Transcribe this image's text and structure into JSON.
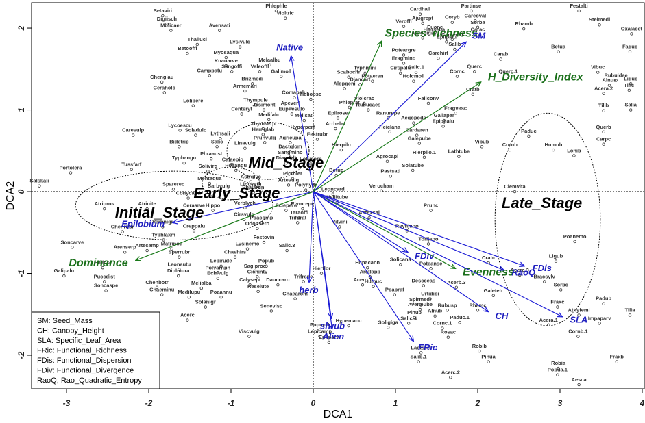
{
  "chart_data": {
    "type": "scatter",
    "xlabel": "DCA1",
    "ylabel": "DCA2",
    "xlim": [
      -3.425,
      4.025
    ],
    "ylim": [
      -2.41,
      2.31
    ],
    "xticks": [
      -3,
      -2,
      -1,
      0,
      1,
      2,
      3,
      4
    ],
    "yticks": [
      -2,
      -1,
      0,
      1,
      2
    ],
    "species": {
      "names": [
        "Setaviri",
        "Digiisch",
        "Molicaer",
        "Avensati",
        "Phlephle",
        "Violtric",
        "Thalluci",
        "Lysivulg",
        "Betooffi",
        "Myosaqua",
        "Knauarve",
        "Sangoffi",
        "Melaalbu",
        "Valeoffi",
        "Galimoll",
        "Camppatu",
        "Chenglau",
        "Brizmedi",
        "Armemari",
        "Ceraholo",
        "Lolipere",
        "Comapalu",
        "Heliobsc",
        "Thympule",
        "Apeverl",
        "Jasimont",
        "Euphesulo",
        "Centeryt",
        "Medifalc",
        "Melisati",
        "Lycoescu",
        "Soladulc",
        "Carevulp",
        "Thymserp",
        "Hernglab",
        "Lythsali",
        "Hyperperf",
        "Festrubr",
        "Salic",
        "Bidetrip",
        "Prunvulg",
        "Agrieupa",
        "Linavulg",
        "Dactglom",
        "Sangmino",
        "Phraaust",
        "Diandelt",
        "Lotucorn",
        "Typhangu",
        "Calaepig",
        "Poaangu",
        "Solivirg",
        "Tussfarf",
        "Portolera",
        "Salskali",
        "Mentaqua",
        "Sparerec",
        "Conycana",
        "Barbvulg",
        "Astrglyc",
        "Linucath",
        "Picrhier",
        "Artevulg",
        "Polyhydr",
        "Phalarun",
        "Verblych",
        "Sciepere",
        "Elymrepe",
        "Hippo",
        "Ceraarve",
        "Atripros",
        "Atrinite",
        "Verbnigr",
        "Chenrubr",
        "Creppalu",
        "Typhlaxm",
        "Cirsvulg",
        "Poacomp",
        "Odonsero",
        "Taraoffi",
        "Trifprat",
        "Festovin",
        "Lysinemo",
        "Salic.3",
        "Matrinod",
        "Soncarve",
        "Arenserp",
        "Artecamp",
        "Sperrubr",
        "Chaehirs",
        "Salic.2",
        "Galipalu",
        "Puccdist",
        "Soncaspe",
        "Lepirude",
        "Leonautu",
        "Diplmura",
        "Polyarnph",
        "Echivulg",
        "Popub",
        "Sagiproc",
        "Cichinty",
        "Chenbotr",
        "Melialba",
        "Chaeminu",
        "Medilupu",
        "Poaannu",
        "Calysepi",
        "Reselute",
        "Dauccaro",
        "Solanigr",
        "Senevisc",
        "Chaearom",
        "Trifrepe",
        "Hierflor",
        "Acerc",
        "Viscvulg",
        "Popuc.1",
        "Lepicamp",
        "Hypemacu",
        "Epilparv",
        "Acerc.1",
        "Eupacann",
        "Arctlapp",
        "Humuc",
        "Poaprat",
        "Solicana",
        "Vitvini",
        "Astexsal",
        "Heliitube",
        "Leoncard",
        "Verocham",
        "Pastsati",
        "Solatube",
        "Agrocapi",
        "Betuc",
        "Hierpilo",
        "Hierpilo.1",
        "Lathtube",
        "Galepube",
        "Cardaren",
        "Heiclana",
        "Ranurepe",
        "Aegopoda",
        "Galiapar",
        "Epippalu",
        "Fragvesc",
        "Fallconv",
        "Arrhelat",
        "Epilrose",
        "Phleprat",
        "Violcrac",
        "Rubucaes",
        "Scabochr",
        "Diancart",
        "Typhmini",
        "Potaeren",
        "Alopgeni",
        "Cirspalu",
        "Salic.1",
        "Holcmoll",
        "Eragmino",
        "Poteargre",
        "Carehirt",
        "Cornc",
        "Querc",
        "Cratb",
        "Querc.1",
        "Carab",
        "Salib",
        "Careechi",
        "Epilpalu",
        "Agrogiga",
        "Euonc",
        "Hierseba",
        "Coryb",
        "Ajugrept",
        "Cardhall",
        "Veroffi",
        "Careoval",
        "Sorba",
        "Carac",
        "Partinse",
        "Rhamb",
        "Festalti",
        "Stelmedi",
        "Oxalacet",
        "Faguc",
        "Betua",
        "Vibuc",
        "Rubuidae",
        "Alnua",
        "Acera.2",
        "Liguc",
        "Tilic",
        "Tilib",
        "Salia",
        "Querb",
        "Carpc",
        "Paduc",
        "Humub",
        "Cornb",
        "Lonib",
        "Vibub",
        "Clemvita",
        "Prunc",
        "Reynjapo",
        "Torijapo",
        "Poteanse",
        "Descceas",
        "Acerb.3",
        "Galetetr",
        "Cratc",
        "Urtidioi",
        "Spirmedi",
        "Avenpube",
        "Rubusp",
        "Alnub",
        "Pinub",
        "Salic.4",
        "Rhamc",
        "Paduc.1",
        "Cornc.1",
        "Rosac",
        "Soligiga",
        "Robib",
        "Pinua",
        "Salib.1",
        "Lactserr",
        "Acerc.2",
        "Poanemo",
        "Ligub",
        "Bracsylv",
        "Acerc.3",
        "Sorbc",
        "Fraxc",
        "Athyfemi",
        "Acera.1",
        "Padub",
        "Tilia",
        "Impaparv",
        "Cornb.1",
        "Fraxb",
        "Robia",
        "Popua.1",
        "Aesca"
      ],
      "x": [
        -1.83,
        -1.78,
        -1.73,
        -1.14,
        -0.45,
        -0.34,
        -1.41,
        -0.89,
        -1.53,
        -1.06,
        -1.06,
        -0.99,
        -0.53,
        -0.65,
        -0.39,
        -1.26,
        -1.84,
        -0.74,
        -0.83,
        -1.81,
        -1.46,
        -0.23,
        -0.03,
        -0.7,
        -0.28,
        -0.6,
        -0.26,
        -0.87,
        -0.54,
        -0.11,
        -1.62,
        -1.43,
        -2.19,
        -0.61,
        -0.61,
        -1.13,
        -0.13,
        0.05,
        -1.17,
        -1.63,
        -0.59,
        -0.28,
        -0.83,
        -0.28,
        -0.28,
        -1.24,
        -0.33,
        -0.03,
        -1.57,
        -0.98,
        -0.94,
        -1.28,
        -2.21,
        -2.95,
        -3.33,
        -1.26,
        -1.7,
        -1.52,
        -1.15,
        -0.76,
        -0.76,
        -0.25,
        -0.3,
        -0.09,
        -0.73,
        -0.83,
        -0.33,
        -0.13,
        -1.22,
        -1.45,
        -2.54,
        -2.02,
        -1.83,
        -2.32,
        -1.45,
        -1.82,
        -0.84,
        -0.63,
        -0.68,
        -0.17,
        -0.19,
        -0.6,
        -0.8,
        -0.32,
        -1.72,
        -2.93,
        -2.29,
        -2.02,
        -1.63,
        -0.95,
        -2.56,
        -3.03,
        -2.54,
        -2.52,
        -1.12,
        -1.63,
        -1.64,
        -1.16,
        -1.16,
        -0.57,
        -0.71,
        -0.68,
        -1.9,
        -1.36,
        -1.84,
        -1.51,
        -1.12,
        -0.77,
        -0.67,
        -0.43,
        -1.31,
        -0.51,
        -0.22,
        -0.12,
        0.1,
        -1.53,
        -0.78,
        0.08,
        0.08,
        0.43,
        0.19,
        0.6,
        0.66,
        0.69,
        0.73,
        0.99,
        1.06,
        0.32,
        0.68,
        0.29,
        0.24,
        0.83,
        0.94,
        1.21,
        0.9,
        0.28,
        0.34,
        1.35,
        1.77,
        1.29,
        1.26,
        0.93,
        0.91,
        1.22,
        1.59,
        1.58,
        1.73,
        1.4,
        0.27,
        0.3,
        0.44,
        0.62,
        0.67,
        0.43,
        0.57,
        0.63,
        0.72,
        0.38,
        1.06,
        1.25,
        1.22,
        1.1,
        1.1,
        1.52,
        1.75,
        1.96,
        1.94,
        2.37,
        2.28,
        1.72,
        1.69,
        1.62,
        1.33,
        1.48,
        1.47,
        1.69,
        1.33,
        1.3,
        1.1,
        1.97,
        2.0,
        2.0,
        1.92,
        2.56,
        3.23,
        3.48,
        3.87,
        3.85,
        2.98,
        3.46,
        3.68,
        3.6,
        3.53,
        3.86,
        3.84,
        3.53,
        3.86,
        3.53,
        3.53,
        2.62,
        2.92,
        2.39,
        3.17,
        2.05,
        2.45,
        1.43,
        1.14,
        1.4,
        1.43,
        1.34,
        1.74,
        2.19,
        2.13,
        1.42,
        1.3,
        1.3,
        1.63,
        1.48,
        1.23,
        1.16,
        2.0,
        1.78,
        1.57,
        1.64,
        0.91,
        2.02,
        2.13,
        1.28,
        1.31,
        1.67,
        3.18,
        2.95,
        2.81,
        2.51,
        3.01,
        2.97,
        3.23,
        2.86,
        3.53,
        3.85,
        3.48,
        3.22,
        3.69,
        2.98,
        2.97,
        3.23
      ],
      "y": [
        2.15,
        2.05,
        1.97,
        1.97,
        2.21,
        2.12,
        1.8,
        1.77,
        1.69,
        1.64,
        1.54,
        1.47,
        1.55,
        1.47,
        1.41,
        1.42,
        1.34,
        1.32,
        1.23,
        1.21,
        1.05,
        1.15,
        1.13,
        1.06,
        1.02,
        1.0,
        0.95,
        0.95,
        0.88,
        0.87,
        0.75,
        0.69,
        0.69,
        0.77,
        0.7,
        0.65,
        0.73,
        0.64,
        0.55,
        0.55,
        0.6,
        0.6,
        0.53,
        0.49,
        0.42,
        0.4,
        0.35,
        0.34,
        0.35,
        0.33,
        0.26,
        0.25,
        0.27,
        0.23,
        0.07,
        0.1,
        0.03,
        -0.08,
        0.01,
        0.12,
        0.03,
        0.16,
        0.08,
        0.02,
        -0.01,
        -0.2,
        -0.23,
        -0.21,
        -0.23,
        -0.23,
        -0.21,
        -0.21,
        -0.43,
        -0.49,
        -0.48,
        -0.59,
        -0.34,
        -0.38,
        -0.45,
        -0.32,
        -0.38,
        -0.62,
        -0.7,
        -0.72,
        -0.7,
        -0.68,
        -0.74,
        -0.72,
        -0.8,
        -0.8,
        -0.93,
        -1.03,
        -1.1,
        -1.21,
        -0.91,
        -0.95,
        -1.03,
        -0.99,
        -1.06,
        -0.91,
        -0.97,
        -1.04,
        -1.17,
        -1.18,
        -1.26,
        -1.29,
        -1.29,
        -1.14,
        -1.22,
        -1.14,
        -1.41,
        -1.46,
        -1.31,
        -1.1,
        -1.0,
        -1.57,
        -1.77,
        -1.69,
        -1.77,
        -1.64,
        -1.84,
        -1.14,
        -0.93,
        -1.04,
        -1.16,
        -1.26,
        -0.89,
        -0.43,
        -0.32,
        -0.13,
        -0.03,
        0.01,
        0.19,
        0.26,
        0.37,
        0.2,
        0.51,
        0.42,
        0.43,
        0.59,
        0.69,
        0.73,
        0.9,
        0.84,
        0.87,
        0.8,
        0.96,
        1.08,
        0.77,
        0.9,
        1.03,
        1.08,
        1.0,
        1.4,
        1.31,
        1.45,
        1.35,
        1.26,
        1.45,
        1.46,
        1.35,
        1.57,
        1.67,
        1.63,
        1.41,
        1.47,
        1.19,
        1.41,
        1.62,
        1.74,
        1.86,
        1.83,
        1.88,
        1.95,
        1.92,
        2.07,
        2.06,
        2.17,
        2.02,
        2.09,
        2.01,
        1.92,
        2.21,
        1.99,
        2.21,
        2.04,
        1.93,
        1.71,
        1.71,
        1.46,
        1.36,
        1.3,
        1.2,
        1.32,
        1.24,
        0.99,
        1.0,
        0.73,
        0.58,
        0.68,
        0.51,
        0.51,
        0.44,
        0.55,
        0.0,
        -0.23,
        -0.48,
        -0.64,
        -0.94,
        -1.15,
        -1.17,
        -1.27,
        -0.87,
        -1.31,
        -1.38,
        -1.44,
        -1.45,
        -1.52,
        -1.54,
        -1.61,
        -1.45,
        -1.6,
        -1.67,
        -1.78,
        -1.66,
        -1.95,
        -2.08,
        -2.08,
        -1.97,
        -2.27,
        -0.61,
        -0.85,
        -1.1,
        -1.02,
        -1.2,
        -1.41,
        -1.51,
        -1.63,
        -1.37,
        -1.51,
        -1.61,
        -1.77,
        -2.08,
        -2.16,
        -2.24,
        -2.36
      ]
    },
    "vectors": [
      {
        "name": "Native",
        "x": -0.27,
        "y": 1.66,
        "color": "#1f1fd6"
      },
      {
        "name": "Species_richness",
        "x": 0.83,
        "y": 1.84,
        "color": "#1a7a1a"
      },
      {
        "name": "SM",
        "x": 1.86,
        "y": 1.83,
        "color": "#1f1fd6"
      },
      {
        "name": "H_Diversity_Index",
        "x": 2.04,
        "y": 1.34,
        "color": "#1a7a1a"
      },
      {
        "name": "FDis",
        "x": 2.57,
        "y": -0.91,
        "color": "#1f1fd6"
      },
      {
        "name": "Evenness",
        "x": 1.73,
        "y": -0.94,
        "color": "#1a7a1a"
      },
      {
        "name": "FDiv",
        "x": 1.15,
        "y": -0.74,
        "color": "#1f1fd6"
      },
      {
        "name": "RaoQ",
        "x": 2.32,
        "y": -0.96,
        "color": "#1f1fd6"
      },
      {
        "name": "CH",
        "x": 2.13,
        "y": -1.47,
        "color": "#1f1fd6"
      },
      {
        "name": "SLA",
        "x": 3.03,
        "y": -1.53,
        "color": "#1f1fd6"
      },
      {
        "name": "FRic",
        "x": 1.22,
        "y": -1.83,
        "color": "#1f1fd6"
      },
      {
        "name": "Alien",
        "x": 0.23,
        "y": -1.68,
        "color": "#1f1fd6"
      },
      {
        "name": "shrub",
        "x": 0.22,
        "y": -1.55,
        "color": "#1f1fd6"
      },
      {
        "name": "herb",
        "x": -0.05,
        "y": -1.11,
        "color": "#1f1fd6"
      },
      {
        "name": "Epilobium",
        "x": -1.71,
        "y": -0.38,
        "color": "#1f1fd6"
      },
      {
        "name": "Dominance",
        "x": -2.16,
        "y": -0.84,
        "color": "#1a7a1a"
      }
    ],
    "stages": [
      {
        "name": "Initial_Stage",
        "x": -1.87,
        "y": -0.27,
        "ellipse": [
          -1.69,
          -0.17,
          1.2,
          0.42
        ]
      },
      {
        "name": "Early_Stage",
        "x": -0.93,
        "y": -0.03,
        "ellipse": [
          -1.0,
          0.1,
          0.35,
          0.2
        ]
      },
      {
        "name": "Mid_Stage",
        "x": -0.33,
        "y": 0.34,
        "ellipse": [
          -0.55,
          0.5,
          0.5,
          0.35
        ]
      },
      {
        "name": "Late_Stage",
        "x": 2.78,
        "y": -0.15,
        "ellipse": [
          2.85,
          -0.34,
          0.64,
          1.3
        ]
      }
    ],
    "legend": [
      "SM:  Seed_Mass",
      "CH:  Canopy_Height",
      "SLA:  Specific_Leaf_Area",
      "FRic:  Functional_Richness",
      "FDis:  Functional_Dispersion",
      "FDiv:  Functional_Divergence",
      "RaoQ;  Rao_Quadratic_Entropy"
    ]
  }
}
